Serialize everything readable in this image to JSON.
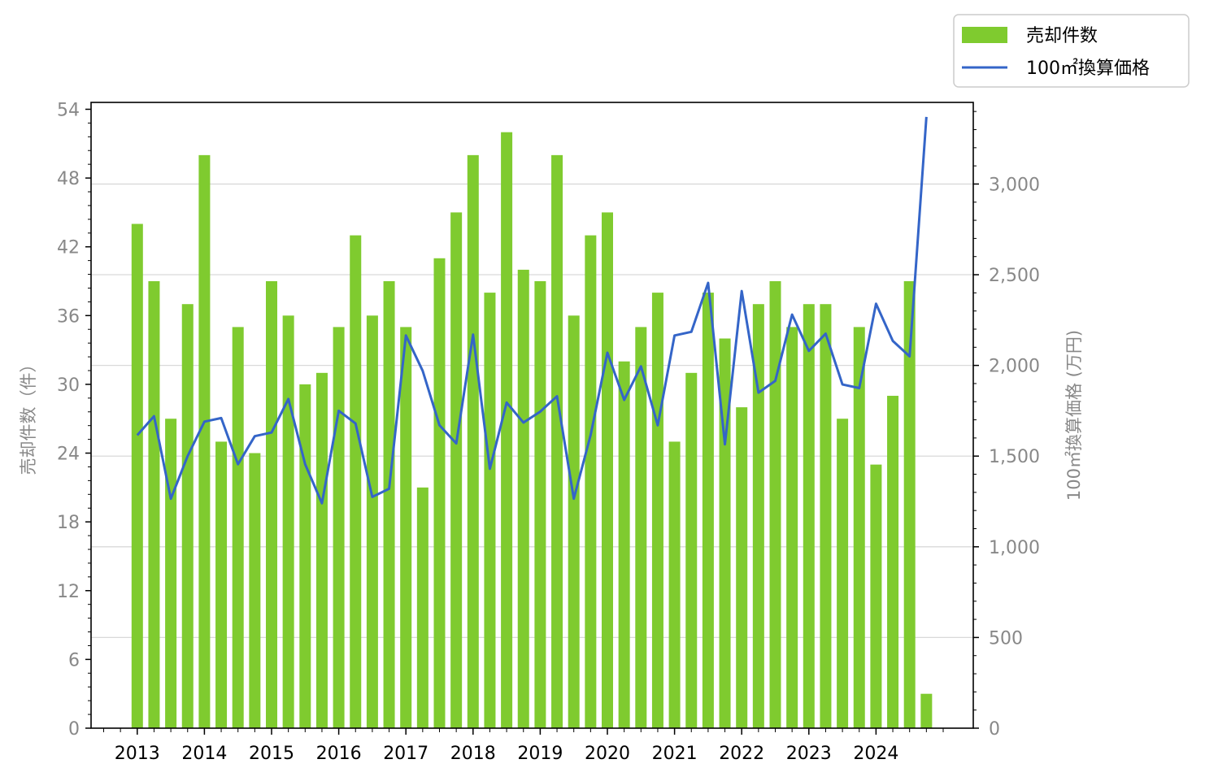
{
  "chart_data": {
    "type": "bar+line",
    "x_tick_labels": [
      "2013",
      "2014",
      "2015",
      "2016",
      "2017",
      "2018",
      "2019",
      "2020",
      "2021",
      "2022",
      "2023",
      "2024"
    ],
    "quarters": [
      "2013Q1",
      "2013Q2",
      "2013Q3",
      "2013Q4",
      "2014Q1",
      "2014Q2",
      "2014Q3",
      "2014Q4",
      "2015Q1",
      "2015Q2",
      "2015Q3",
      "2015Q4",
      "2016Q1",
      "2016Q2",
      "2016Q3",
      "2016Q4",
      "2017Q1",
      "2017Q2",
      "2017Q3",
      "2017Q4",
      "2018Q1",
      "2018Q2",
      "2018Q3",
      "2018Q4",
      "2019Q1",
      "2019Q2",
      "2019Q3",
      "2019Q4",
      "2020Q1",
      "2020Q2",
      "2020Q3",
      "2020Q4",
      "2021Q1",
      "2021Q2",
      "2021Q3",
      "2021Q4",
      "2022Q1",
      "2022Q2",
      "2022Q3",
      "2022Q4",
      "2023Q1",
      "2023Q2",
      "2023Q3",
      "2023Q4",
      "2024Q1",
      "2024Q2",
      "2024Q3",
      "2024Q4"
    ],
    "series": [
      {
        "name": "売却件数",
        "type": "bar",
        "axis": "left",
        "color": "#7fcb2f",
        "values": [
          44,
          39,
          27,
          37,
          50,
          25,
          35,
          24,
          39,
          36,
          30,
          31,
          35,
          43,
          36,
          39,
          35,
          21,
          41,
          45,
          50,
          38,
          52,
          40,
          39,
          50,
          36,
          43,
          45,
          32,
          35,
          38,
          25,
          31,
          38,
          34,
          28,
          37,
          39,
          35,
          37,
          37,
          27,
          35,
          23,
          29,
          39,
          3
        ]
      },
      {
        "name": "100㎡換算価格",
        "type": "line",
        "axis": "right",
        "color": "#3465c8",
        "values": [
          1615,
          1720,
          1265,
          1500,
          1690,
          1710,
          1455,
          1610,
          1630,
          1815,
          1455,
          1240,
          1750,
          1680,
          1275,
          1320,
          2165,
          1970,
          1670,
          1570,
          2170,
          1430,
          1795,
          1685,
          1745,
          1830,
          1265,
          1615,
          2070,
          1810,
          1995,
          1670,
          2165,
          2185,
          2455,
          1565,
          2410,
          1850,
          1915,
          2280,
          2080,
          2175,
          1895,
          1875,
          2340,
          2135,
          2050,
          3370
        ]
      }
    ],
    "left_axis": {
      "label": "売却件数（件）",
      "range": [
        0,
        54.6
      ],
      "ticks": [
        "0",
        "6",
        "12",
        "18",
        "24",
        "30",
        "36",
        "42",
        "48",
        "54"
      ]
    },
    "right_axis": {
      "label": "100㎡換算価格 (万円)",
      "range": [
        0,
        3450
      ],
      "ticks": [
        "0",
        "500",
        "1,000",
        "1,500",
        "2,000",
        "2,500",
        "3,000"
      ]
    },
    "grid": "horizontal on right-axis major ticks",
    "legend": {
      "placement": "top-right outside plot",
      "entries": [
        "売却件数",
        "100㎡換算価格"
      ]
    }
  }
}
